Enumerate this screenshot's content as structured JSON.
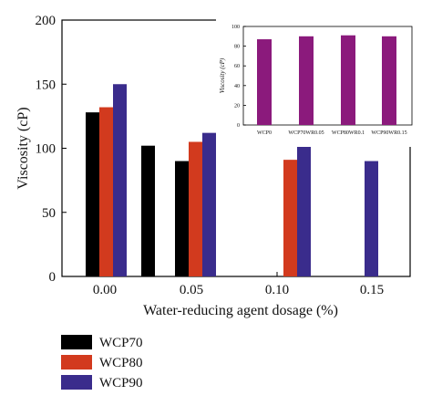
{
  "chart_data": [
    {
      "type": "bar",
      "xlabel": "Water-reducing agent dosage (%)",
      "ylabel": "Viscosity (cP)",
      "ylim": [
        0,
        200
      ],
      "yticks": [
        "0",
        "50",
        "100",
        "150",
        "200"
      ],
      "categories": [
        "0.00",
        "0.05",
        "0.10",
        "0.15"
      ],
      "series": [
        {
          "name": "WCP70",
          "color": "#000000",
          "values": [
            128,
            90,
            null,
            null
          ]
        },
        {
          "name": "WCP80",
          "color": "#d23a1e",
          "values": [
            132,
            105,
            91,
            null
          ]
        },
        {
          "name": "WCP90",
          "color": "#3a2c8c",
          "values": [
            150,
            112,
            105,
            90
          ]
        }
      ],
      "extra_bars": [
        {
          "category": "0.00",
          "series": "WCP70",
          "value": 102,
          "note": "standalone bar between 0.00 and 0.05 groups"
        }
      ],
      "legend": "below",
      "grid": false
    },
    {
      "type": "bar",
      "ylabel": "Viscosity (cP)",
      "ylim": [
        0,
        100
      ],
      "yticks": [
        "0",
        "20",
        "40",
        "60",
        "80",
        "100"
      ],
      "categories": [
        "WCP0",
        "WCP70WR0.05",
        "WCP80WR0.1",
        "WCP90WR0.15"
      ],
      "values": [
        87,
        90,
        91,
        90
      ],
      "color": "#8b1a7c",
      "grid": false
    }
  ]
}
